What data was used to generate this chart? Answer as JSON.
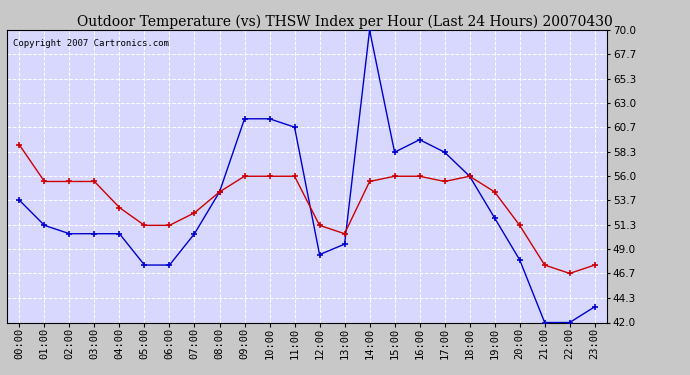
{
  "title": "Outdoor Temperature (vs) THSW Index per Hour (Last 24 Hours) 20070430",
  "copyright": "Copyright 2007 Cartronics.com",
  "hours": [
    "00:00",
    "01:00",
    "02:00",
    "03:00",
    "04:00",
    "05:00",
    "06:00",
    "07:00",
    "08:00",
    "09:00",
    "10:00",
    "11:00",
    "12:00",
    "13:00",
    "14:00",
    "15:00",
    "16:00",
    "17:00",
    "18:00",
    "19:00",
    "20:00",
    "21:00",
    "22:00",
    "23:00"
  ],
  "thsw": [
    53.7,
    51.3,
    50.5,
    50.5,
    50.5,
    47.5,
    47.5,
    50.5,
    54.5,
    61.5,
    61.5,
    60.7,
    48.5,
    49.5,
    70.0,
    58.3,
    59.5,
    58.3,
    56.0,
    52.0,
    48.0,
    42.0,
    42.0,
    43.5
  ],
  "temp": [
    59.0,
    55.5,
    55.5,
    55.5,
    53.0,
    51.3,
    51.3,
    52.5,
    54.5,
    56.0,
    56.0,
    56.0,
    51.3,
    50.5,
    55.5,
    56.0,
    56.0,
    55.5,
    56.0,
    54.5,
    51.3,
    47.5,
    46.7,
    47.5
  ],
  "thsw_color": "#0000cc",
  "temp_color": "#cc0000",
  "outer_bg": "#c8c8c8",
  "plot_bg": "#d8d8ff",
  "grid_color": "#ffffff",
  "border_color": "#000000",
  "ylim_min": 42.0,
  "ylim_max": 70.0,
  "yticks": [
    42.0,
    44.3,
    46.7,
    49.0,
    51.3,
    53.7,
    56.0,
    58.3,
    60.7,
    63.0,
    65.3,
    67.7,
    70.0
  ],
  "title_fontsize": 10,
  "copyright_fontsize": 6.5,
  "tick_fontsize": 7.5
}
